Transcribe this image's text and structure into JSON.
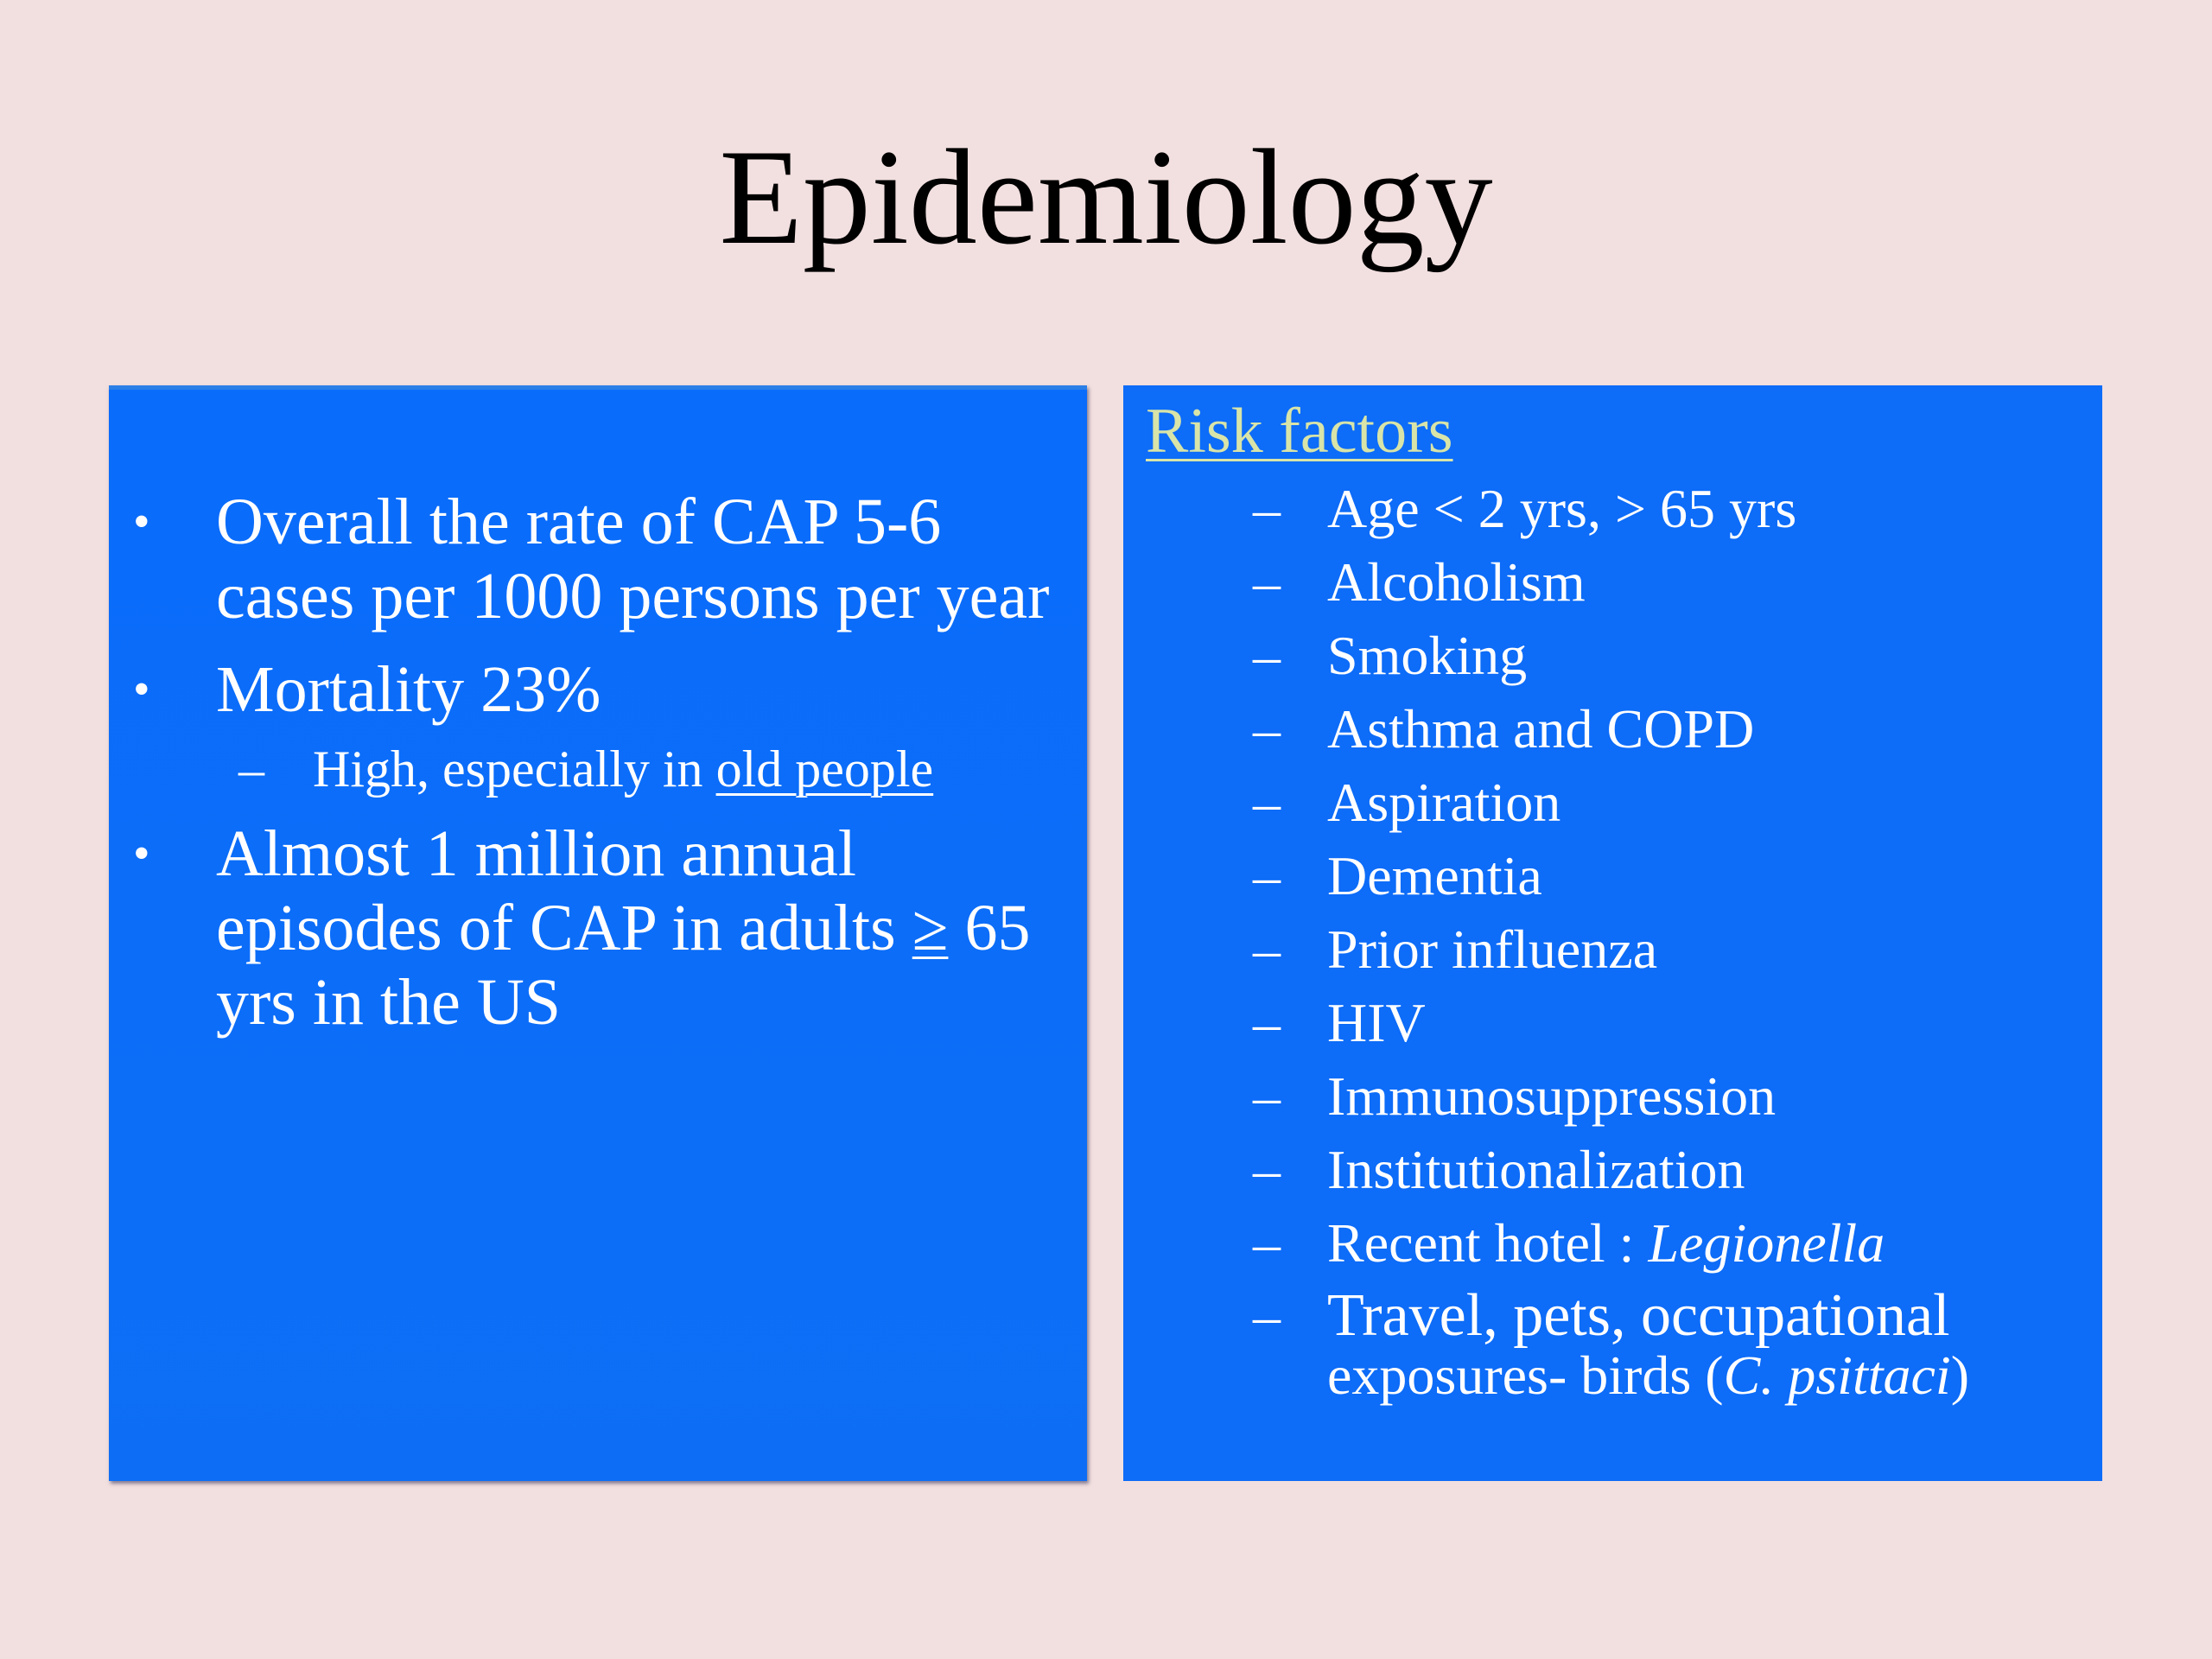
{
  "slide": {
    "title": "Epidemiology"
  },
  "left_panel": {
    "bullets": [
      {
        "text": "Overall the rate of CAP 5-6 cases per 1000 persons per year"
      },
      {
        "text": "Mortality 23%"
      },
      {
        "sub_prefix": "High, especially in ",
        "sub_underlined": "old people"
      },
      {
        "prefix": "Almost 1 million annual episodes of CAP in adults ",
        "symbol": "≥",
        "suffix": " 65 yrs in the US"
      }
    ]
  },
  "right_panel": {
    "heading": "Risk factors",
    "items": [
      "Age < 2 yrs, > 65 yrs",
      "Alcoholism",
      "Smoking",
      "Asthma and COPD",
      "Aspiration",
      "Dementia",
      "Prior influenza",
      "HIV",
      "Immunosuppression",
      "Institutionalization"
    ],
    "hotel": {
      "prefix": "Recent hotel : ",
      "italic": "Legionella"
    },
    "travel": {
      "part1": "Travel, pets, occupational",
      "part2_prefix": "exposures- birds (",
      "part2_italic": "C. psittaci",
      "part2_suffix": ")"
    }
  },
  "colors": {
    "background": "#f2dfdf",
    "panel_blue": "#0d6cf8",
    "heading_color": "#d8e4a8",
    "text": "#ffffff"
  }
}
